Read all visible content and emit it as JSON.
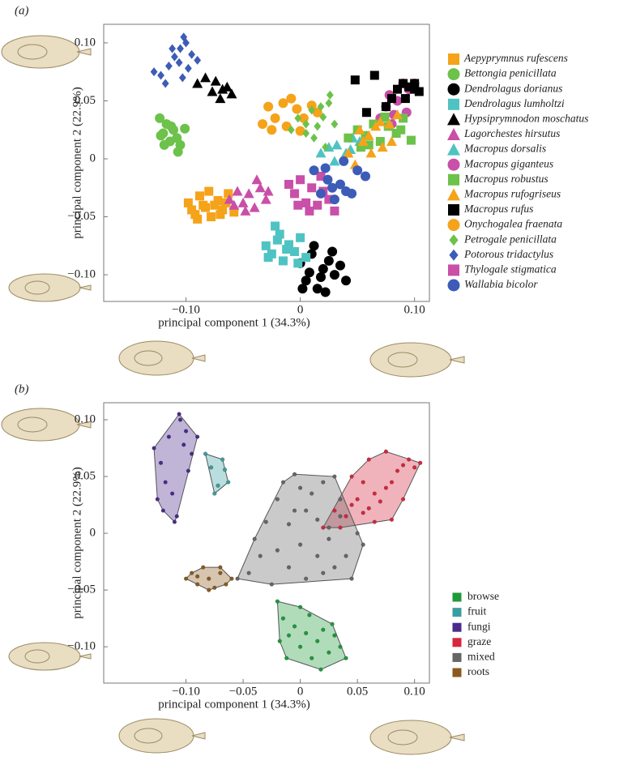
{
  "chart_data": [
    {
      "type": "scatter",
      "label": "(a)",
      "x_label": "principal component 1 (34.3%)",
      "y_label": "principal component 2 (22.9%)",
      "xlim": [
        -0.172,
        0.113
      ],
      "ylim": [
        -0.123,
        0.116
      ],
      "xticks": [
        {
          "value": -0.1,
          "label": "−0.10"
        },
        0,
        {
          "value": 0.1,
          "label": "0.10"
        }
      ],
      "yticks": [
        {
          "value": 0.1,
          "label": "0.10"
        },
        {
          "value": 0.05,
          "label": "0.05"
        },
        0,
        {
          "value": -0.05,
          "label": "−0.05"
        },
        {
          "value": -0.1,
          "label": "−0.10"
        }
      ],
      "legend": "right",
      "hulls": false,
      "series": [
        {
          "name": "Aepyprymnus rufescens",
          "color": "#f5a31a",
          "marker": "square",
          "x": [
            -0.098,
            -0.092,
            -0.088,
            -0.083,
            -0.078,
            -0.072,
            -0.068,
            -0.063,
            -0.058,
            -0.09,
            -0.08,
            -0.07,
            -0.065,
            -0.095,
            -0.075,
            -0.085
          ],
          "y": [
            -0.038,
            -0.048,
            -0.032,
            -0.042,
            -0.05,
            -0.036,
            -0.044,
            -0.03,
            -0.046,
            -0.052,
            -0.028,
            -0.048,
            -0.038,
            -0.044,
            -0.04,
            -0.04
          ]
        },
        {
          "name": "Bettongia penicillata",
          "color": "#6cc24a",
          "marker": "circle",
          "x": [
            -0.123,
            -0.12,
            -0.117,
            -0.114,
            -0.111,
            -0.108,
            -0.105,
            -0.119,
            -0.113,
            -0.107,
            -0.101,
            -0.122
          ],
          "y": [
            0.035,
            0.022,
            0.03,
            0.015,
            0.025,
            0.018,
            0.012,
            0.012,
            0.028,
            0.006,
            0.026,
            0.02
          ]
        },
        {
          "name": "Dendrolagus dorianus",
          "color": "#000000",
          "marker": "circle",
          "x": [
            0.0,
            0.005,
            0.01,
            0.015,
            0.02,
            0.025,
            0.03,
            0.035,
            0.012,
            0.022,
            0.04,
            0.008,
            0.028,
            0.018,
            0.002
          ],
          "y": [
            -0.09,
            -0.105,
            -0.082,
            -0.112,
            -0.095,
            -0.088,
            -0.1,
            -0.092,
            -0.075,
            -0.115,
            -0.105,
            -0.098,
            -0.08,
            -0.102,
            -0.112
          ]
        },
        {
          "name": "Dendrolagus lumholtzi",
          "color": "#4fc3c3",
          "marker": "square",
          "x": [
            -0.03,
            -0.025,
            -0.02,
            -0.015,
            -0.01,
            -0.005,
            0.0,
            0.005,
            -0.022,
            -0.012,
            -0.002,
            -0.028,
            -0.018
          ],
          "y": [
            -0.075,
            -0.082,
            -0.07,
            -0.088,
            -0.074,
            -0.08,
            -0.068,
            -0.085,
            -0.058,
            -0.078,
            -0.09,
            -0.085,
            -0.065
          ]
        },
        {
          "name": "Hypsiprymnodon moschatus",
          "color": "#000000",
          "marker": "triangle",
          "x": [
            -0.09,
            -0.083,
            -0.077,
            -0.07,
            -0.064,
            -0.06,
            -0.074,
            -0.068
          ],
          "y": [
            0.065,
            0.07,
            0.058,
            0.052,
            0.062,
            0.056,
            0.067,
            0.06
          ]
        },
        {
          "name": "Lagorchestes hirsutus",
          "color": "#c94fa8",
          "marker": "triangle",
          "x": [
            -0.062,
            -0.055,
            -0.05,
            -0.045,
            -0.04,
            -0.035,
            -0.03,
            -0.048,
            -0.038,
            -0.058,
            -0.028
          ],
          "y": [
            -0.035,
            -0.028,
            -0.038,
            -0.03,
            -0.042,
            -0.025,
            -0.035,
            -0.045,
            -0.018,
            -0.04,
            -0.028
          ]
        },
        {
          "name": "Macropus dorsalis",
          "color": "#4fc3c3",
          "marker": "triangle",
          "x": [
            0.018,
            0.025,
            0.032,
            0.04,
            0.046,
            0.052,
            0.058,
            0.03,
            0.044
          ],
          "y": [
            0.005,
            0.01,
            0.012,
            0.005,
            0.018,
            0.015,
            0.02,
            -0.002,
            0.008
          ]
        },
        {
          "name": "Macropus giganteus",
          "color": "#c94fa8",
          "marker": "circle",
          "x": [
            0.07,
            0.075,
            0.08,
            0.085,
            0.09,
            0.095,
            0.1,
            0.078,
            0.093,
            0.082
          ],
          "y": [
            0.035,
            0.045,
            0.03,
            0.05,
            0.065,
            0.06,
            0.065,
            0.055,
            0.04,
            0.038
          ]
        },
        {
          "name": "Macropus robustus",
          "color": "#6cc24a",
          "marker": "square",
          "x": [
            0.042,
            0.05,
            0.057,
            0.064,
            0.07,
            0.077,
            0.084,
            0.09,
            0.097,
            0.06,
            0.074,
            0.088,
            0.053
          ],
          "y": [
            0.018,
            0.025,
            0.02,
            0.03,
            0.015,
            0.028,
            0.022,
            0.035,
            0.016,
            0.012,
            0.036,
            0.025,
            0.01
          ]
        },
        {
          "name": "Macropus rufogriseus",
          "color": "#f5a31a",
          "marker": "triangle",
          "x": [
            0.042,
            0.048,
            0.055,
            0.06,
            0.066,
            0.072,
            0.078,
            0.085,
            0.062,
            0.07,
            0.052,
            0.08
          ],
          "y": [
            0.005,
            -0.005,
            0.015,
            0.02,
            0.028,
            0.01,
            0.03,
            0.038,
            0.005,
            0.032,
            0.025,
            0.015
          ]
        },
        {
          "name": "Macropus rufus",
          "color": "#000000",
          "marker": "square",
          "x": [
            0.048,
            0.065,
            0.075,
            0.08,
            0.085,
            0.09,
            0.095,
            0.1,
            0.104,
            0.058,
            0.092,
            0.1
          ],
          "y": [
            0.068,
            0.072,
            0.045,
            0.052,
            0.06,
            0.065,
            0.062,
            0.06,
            0.058,
            0.04,
            0.052,
            0.065
          ]
        },
        {
          "name": "Onychogalea fraenata",
          "color": "#f5a31a",
          "marker": "circle",
          "x": [
            -0.033,
            -0.028,
            -0.022,
            -0.015,
            -0.008,
            -0.003,
            0.003,
            0.01,
            -0.025,
            -0.012,
            0.0,
            0.015
          ],
          "y": [
            0.03,
            0.045,
            0.035,
            0.048,
            0.052,
            0.043,
            0.035,
            0.046,
            0.025,
            0.028,
            0.024,
            0.04
          ]
        },
        {
          "name": "Petrogale penicillata",
          "color": "#6cc24a",
          "marker": "diamond",
          "x": [
            -0.008,
            -0.002,
            0.005,
            0.01,
            0.015,
            0.02,
            0.025,
            0.03,
            0.012,
            0.022,
            0.018,
            0.005,
            0.026
          ],
          "y": [
            0.025,
            0.035,
            0.03,
            0.042,
            0.028,
            0.036,
            0.048,
            0.03,
            0.018,
            0.01,
            0.045,
            0.022,
            0.055
          ]
        },
        {
          "name": "Potorous tridactylus",
          "color": "#3d5cb8",
          "marker": "diamond",
          "x": [
            -0.128,
            -0.122,
            -0.115,
            -0.11,
            -0.105,
            -0.1,
            -0.095,
            -0.09,
            -0.103,
            -0.112,
            -0.098,
            -0.106,
            -0.118,
            -0.102
          ],
          "y": [
            0.075,
            0.072,
            0.08,
            0.088,
            0.095,
            0.1,
            0.09,
            0.085,
            0.07,
            0.095,
            0.078,
            0.083,
            0.065,
            0.105
          ]
        },
        {
          "name": "Thylogale stigmatica",
          "color": "#c94fa8",
          "marker": "square",
          "x": [
            -0.01,
            -0.005,
            0.0,
            0.005,
            0.01,
            0.015,
            0.02,
            0.025,
            0.03,
            0.008,
            0.018,
            -0.002
          ],
          "y": [
            -0.022,
            -0.03,
            -0.018,
            -0.038,
            -0.025,
            -0.04,
            -0.028,
            -0.035,
            -0.045,
            -0.045,
            -0.015,
            -0.04
          ]
        },
        {
          "name": "Wallabia bicolor",
          "color": "#3d5cb8",
          "marker": "circle",
          "x": [
            0.012,
            0.018,
            0.024,
            0.03,
            0.035,
            0.04,
            0.045,
            0.05,
            0.057,
            0.022,
            0.038,
            0.028
          ],
          "y": [
            -0.01,
            -0.03,
            -0.018,
            -0.035,
            -0.022,
            -0.028,
            -0.03,
            -0.01,
            -0.015,
            -0.008,
            -0.002,
            -0.025
          ]
        }
      ]
    },
    {
      "type": "scatter",
      "label": "(b)",
      "x_label": "principal component 1 (34.3%)",
      "y_label": "principal component 2 (22.9%)",
      "xlim": [
        -0.172,
        0.113
      ],
      "ylim": [
        -0.132,
        0.115
      ],
      "xticks": [
        {
          "value": -0.1,
          "label": "−0.10"
        },
        {
          "value": -0.05,
          "label": "−0.05"
        },
        0,
        {
          "value": 0.05,
          "label": "0.05"
        },
        {
          "value": 0.1,
          "label": "0.10"
        }
      ],
      "yticks": [
        {
          "value": 0.1,
          "label": "0.10"
        },
        {
          "value": 0.05,
          "label": "0.05"
        },
        0,
        {
          "value": -0.05,
          "label": "−0.05"
        },
        {
          "value": -0.1,
          "label": "−0.10"
        }
      ],
      "legend": "lower right",
      "hulls": true,
      "series": [
        {
          "name": "browse",
          "color": "#1e9a3a",
          "marker": "dot",
          "x": [
            -0.02,
            -0.015,
            -0.01,
            -0.005,
            0.0,
            0.005,
            0.01,
            0.015,
            0.02,
            0.025,
            0.03,
            0.035,
            0.04,
            -0.012,
            0.008,
            0.018,
            0.028,
            0.0,
            -0.018
          ],
          "y": [
            -0.06,
            -0.075,
            -0.09,
            -0.082,
            -0.1,
            -0.088,
            -0.11,
            -0.095,
            -0.085,
            -0.105,
            -0.09,
            -0.1,
            -0.11,
            -0.11,
            -0.072,
            -0.12,
            -0.08,
            -0.065,
            -0.095
          ]
        },
        {
          "name": "fruit",
          "color": "#3a9ea0",
          "marker": "dot",
          "x": [
            -0.083,
            -0.078,
            -0.072,
            -0.068,
            -0.063,
            -0.075,
            -0.066
          ],
          "y": [
            0.07,
            0.058,
            0.042,
            0.065,
            0.045,
            0.035,
            0.056
          ]
        },
        {
          "name": "fungi",
          "color": "#4b2a8c",
          "marker": "dot",
          "x": [
            -0.128,
            -0.125,
            -0.12,
            -0.115,
            -0.11,
            -0.105,
            -0.1,
            -0.095,
            -0.09,
            -0.118,
            -0.108,
            -0.098,
            -0.122,
            -0.112,
            -0.102,
            -0.106
          ],
          "y": [
            0.075,
            0.03,
            0.02,
            0.085,
            0.01,
            0.1,
            0.09,
            0.07,
            0.085,
            0.045,
            0.015,
            0.055,
            0.062,
            0.035,
            0.078,
            0.105
          ]
        },
        {
          "name": "graze",
          "color": "#d7263d",
          "marker": "dot",
          "x": [
            0.02,
            0.03,
            0.04,
            0.045,
            0.05,
            0.055,
            0.06,
            0.065,
            0.07,
            0.075,
            0.08,
            0.085,
            0.09,
            0.095,
            0.1,
            0.105,
            0.045,
            0.06,
            0.075,
            0.09,
            0.065,
            0.08,
            0.035,
            0.055
          ],
          "y": [
            0.005,
            0.02,
            0.015,
            0.025,
            0.03,
            0.018,
            0.022,
            0.035,
            0.028,
            0.04,
            0.045,
            0.055,
            0.06,
            0.065,
            0.058,
            0.062,
            0.05,
            0.065,
            0.072,
            0.03,
            0.01,
            0.012,
            0.005,
            0.045
          ]
        },
        {
          "name": "mixed",
          "color": "#666666",
          "marker": "dot",
          "x": [
            -0.055,
            -0.045,
            -0.035,
            -0.03,
            -0.02,
            -0.015,
            -0.01,
            -0.005,
            0.0,
            0.005,
            0.01,
            0.015,
            0.02,
            0.025,
            0.03,
            0.035,
            0.04,
            0.045,
            0.05,
            0.055,
            -0.025,
            -0.01,
            0.005,
            0.02,
            0.035,
            -0.04,
            -0.02,
            0.0,
            0.015,
            0.03,
            -0.005,
            0.025
          ],
          "y": [
            -0.04,
            -0.035,
            -0.02,
            0.01,
            0.03,
            0.045,
            -0.03,
            0.02,
            0.04,
            -0.04,
            0.035,
            -0.02,
            0.045,
            0.005,
            -0.03,
            0.015,
            -0.02,
            -0.04,
            0.0,
            -0.01,
            -0.045,
            0.008,
            0.02,
            -0.035,
            0.03,
            -0.005,
            -0.015,
            -0.01,
            0.012,
            0.05,
            0.052,
            -0.005
          ]
        },
        {
          "name": "roots",
          "color": "#8b5a1e",
          "marker": "dot",
          "x": [
            -0.1,
            -0.095,
            -0.09,
            -0.085,
            -0.08,
            -0.075,
            -0.07,
            -0.065,
            -0.06,
            -0.09,
            -0.08,
            -0.07
          ],
          "y": [
            -0.04,
            -0.035,
            -0.045,
            -0.03,
            -0.04,
            -0.048,
            -0.035,
            -0.045,
            -0.04,
            -0.038,
            -0.05,
            -0.03
          ]
        }
      ]
    }
  ]
}
